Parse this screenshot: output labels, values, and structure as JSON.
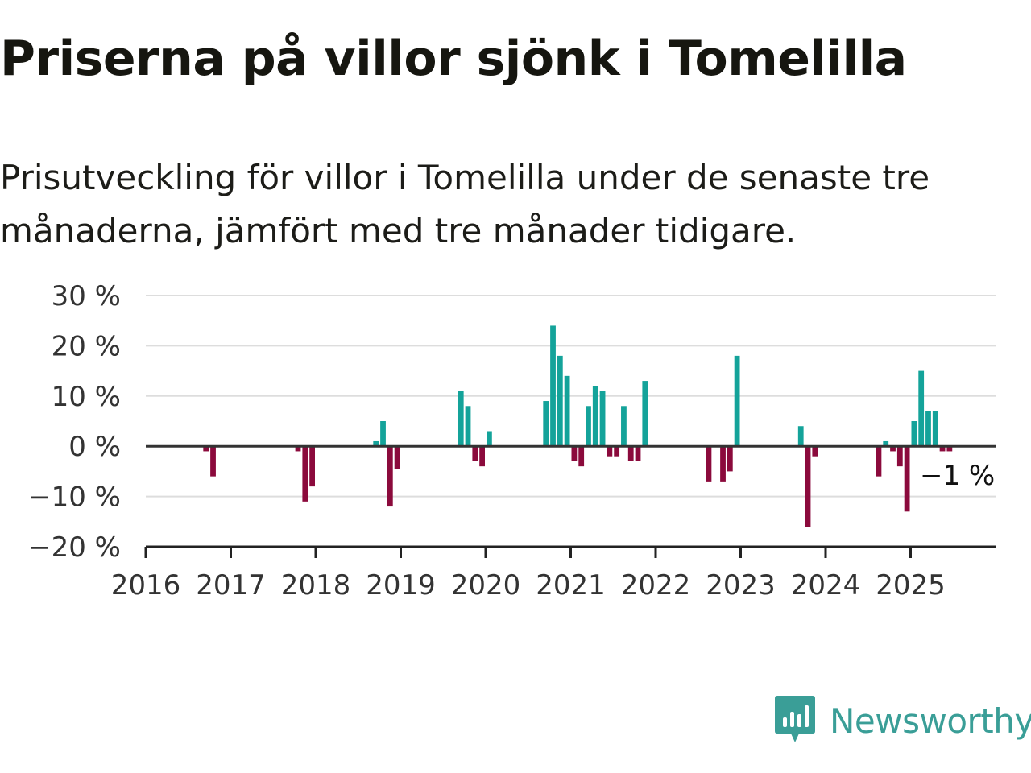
{
  "header": {
    "title": "Priserna på villor sjönk i Tomelilla",
    "subtitle": "Prisutveckling för villor i Tomelilla under de senaste tre månaderna, jämfört med tre månader tidigare."
  },
  "brand": {
    "name": "Newsworthy",
    "icon": "newsworthy-logo-icon",
    "color": "#3a9e97"
  },
  "colors": {
    "positive": "#14a39a",
    "negative": "#8b0a3c",
    "grid": "#dddddd",
    "axis": "#222222"
  },
  "chart_data": {
    "type": "bar",
    "title": "Priserna på villor sjönk i Tomelilla",
    "subtitle": "Prisutveckling för villor i Tomelilla under de senaste tre månaderna, jämfört med tre månader tidigare.",
    "xlabel": "",
    "ylabel": "",
    "x_unit": "month",
    "xlim": [
      "2016-01",
      "2025-12"
    ],
    "ylim": [
      -20,
      30
    ],
    "yticks": [
      30,
      20,
      10,
      0,
      -10,
      -20
    ],
    "ytick_labels": [
      "30 %",
      "20 %",
      "10 %",
      "0 %",
      "−10 %",
      "−20 %"
    ],
    "xtick_labels": [
      "2016",
      "2017",
      "2018",
      "2019",
      "2020",
      "2021",
      "2022",
      "2023",
      "2024",
      "2025"
    ],
    "grid": true,
    "legend": "none",
    "end_label": "−1 %",
    "series": [
      {
        "x": [
          "2016-09",
          "2016-10",
          "2017-10",
          "2017-11",
          "2017-12",
          "2018-09",
          "2018-10",
          "2018-11",
          "2018-12",
          "2019-09",
          "2019-10",
          "2019-11",
          "2019-12",
          "2020-01",
          "2020-09",
          "2020-10",
          "2020-11",
          "2020-12",
          "2021-01",
          "2021-02",
          "2021-03",
          "2021-04",
          "2021-05",
          "2021-06",
          "2021-07",
          "2021-08",
          "2021-09",
          "2021-10",
          "2021-11",
          "2022-08",
          "2022-10",
          "2022-11",
          "2022-12",
          "2023-09",
          "2023-10",
          "2023-11",
          "2024-08",
          "2024-09",
          "2024-10",
          "2024-11",
          "2024-12",
          "2025-01",
          "2025-02",
          "2025-03",
          "2025-04",
          "2025-05",
          "2025-06"
        ],
        "values": [
          -1,
          -6,
          -1,
          -11,
          -8,
          1,
          5,
          -12,
          -4.5,
          11,
          8,
          -3,
          -4,
          3,
          9,
          24,
          18,
          14,
          -3,
          -4,
          8,
          12,
          11,
          -2,
          -2,
          8,
          -3,
          -3,
          13,
          -7,
          -7,
          -5,
          18,
          4,
          -16,
          -2,
          -6,
          1,
          -1,
          -4,
          -13,
          5,
          15,
          7,
          7,
          -1,
          -1
        ]
      }
    ]
  }
}
